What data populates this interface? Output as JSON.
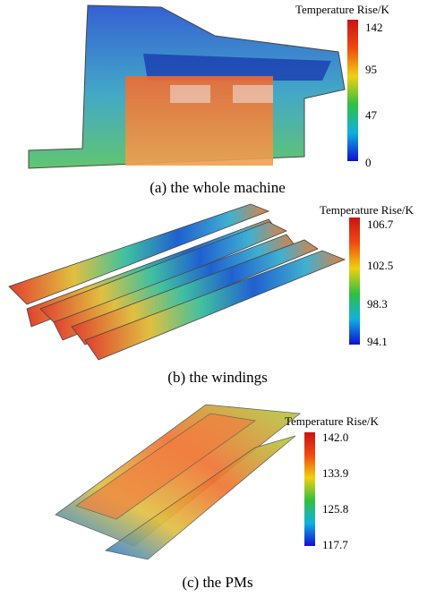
{
  "panels": [
    {
      "caption": "(a) the whole machine",
      "colorbar": {
        "title": "Temperature Rise/K",
        "ticks": [
          "142",
          "95",
          "47",
          "0"
        ]
      }
    },
    {
      "caption": "(b) the windings",
      "colorbar": {
        "title": "Temperature Rise/K",
        "ticks": [
          "106.7",
          "102.5",
          "98.3",
          "94.1"
        ]
      }
    },
    {
      "caption": "(c) the PMs",
      "colorbar": {
        "title": "Temperature Rise/K",
        "ticks": [
          "142.0",
          "133.9",
          "125.8",
          "117.7"
        ]
      }
    }
  ]
}
